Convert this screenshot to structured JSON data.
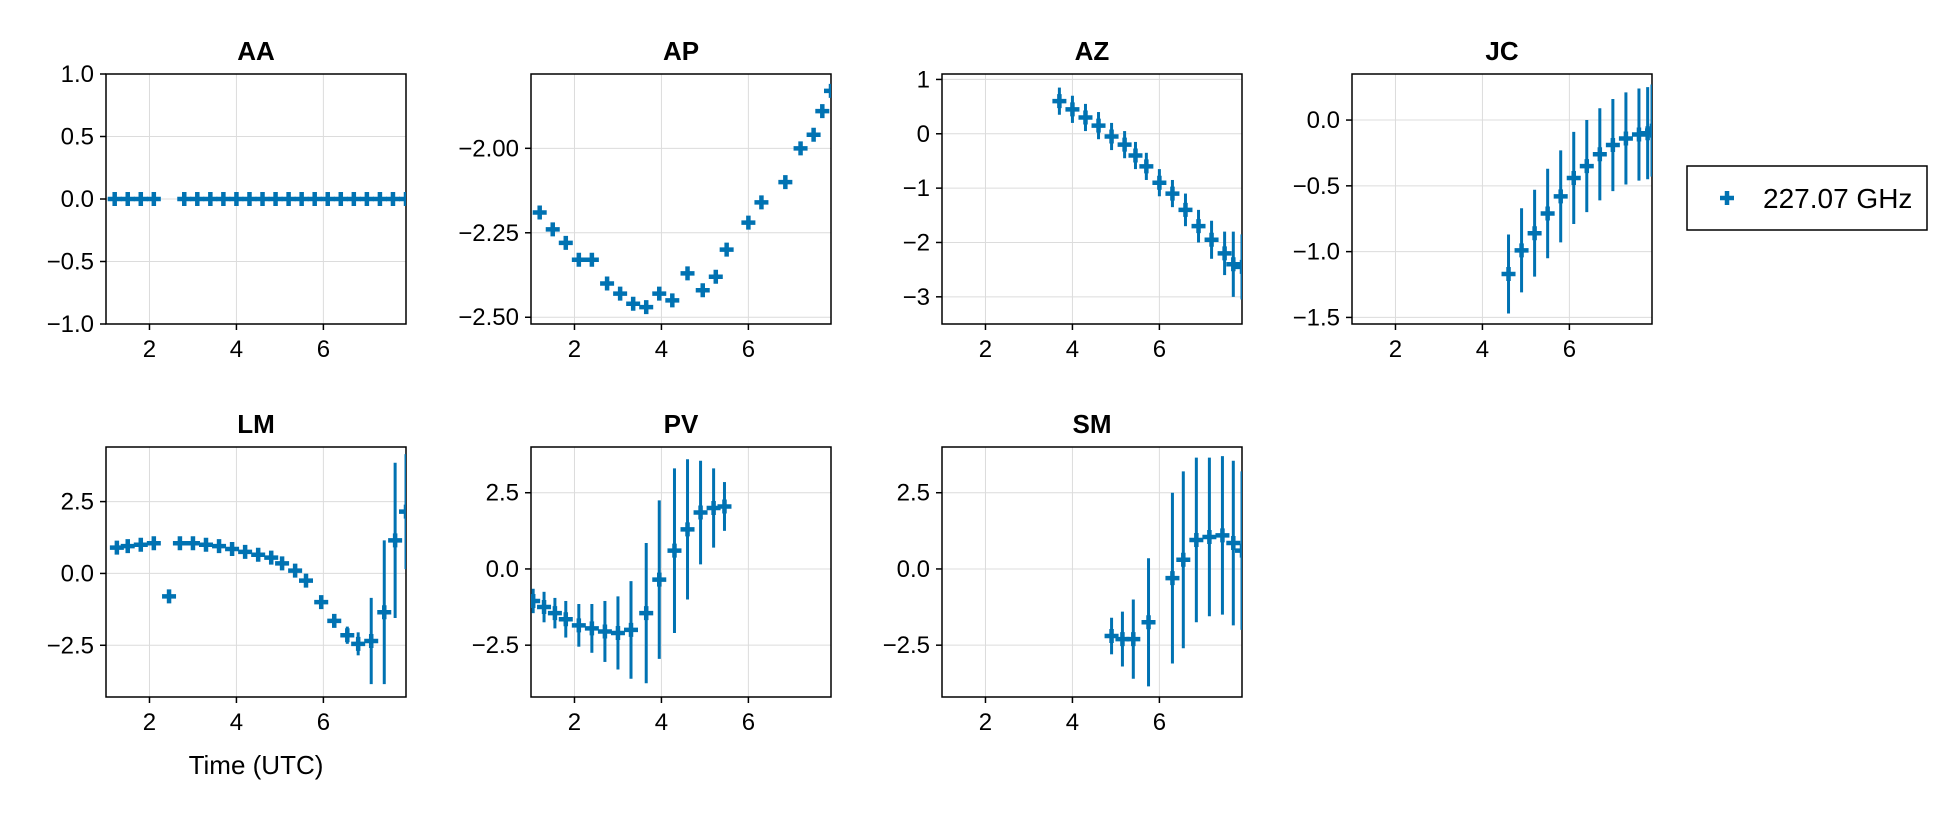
{
  "figure": {
    "xlabel": "Time (UTC)",
    "legend": {
      "label": "227.07 GHz",
      "placement": "right",
      "marker": "plus"
    },
    "series_color": "#0072b2",
    "grid": true
  },
  "chart_data": [
    {
      "type": "scatter",
      "title": "AA",
      "error_bars": true,
      "xlim": [
        1.0,
        7.9
      ],
      "ylim": [
        -1.0,
        1.0
      ],
      "xticks": [
        2,
        4,
        6
      ],
      "yticks": [
        -1.0,
        -0.5,
        0.0,
        0.5,
        1.0
      ],
      "ytick_labels": [
        "−1.0",
        "−0.5",
        "0.0",
        "0.5",
        "1.0"
      ],
      "points": [
        [
          1.2,
          0,
          0
        ],
        [
          1.5,
          0,
          0
        ],
        [
          1.8,
          0,
          0
        ],
        [
          2.1,
          0,
          0
        ],
        [
          2.8,
          0,
          0
        ],
        [
          3.1,
          0,
          0
        ],
        [
          3.4,
          0,
          0
        ],
        [
          3.7,
          0,
          0
        ],
        [
          4.0,
          0,
          0
        ],
        [
          4.3,
          0,
          0
        ],
        [
          4.6,
          0,
          0
        ],
        [
          4.9,
          0,
          0
        ],
        [
          5.2,
          0,
          0
        ],
        [
          5.5,
          0,
          0
        ],
        [
          5.8,
          0,
          0
        ],
        [
          6.1,
          0,
          0
        ],
        [
          6.4,
          0,
          0
        ],
        [
          6.7,
          0,
          0
        ],
        [
          7.0,
          0,
          0
        ],
        [
          7.3,
          0,
          0
        ],
        [
          7.6,
          0,
          0
        ],
        [
          7.9,
          0,
          0
        ]
      ]
    },
    {
      "type": "scatter",
      "title": "AP",
      "error_bars": true,
      "xlim": [
        1.0,
        7.9
      ],
      "ylim": [
        -2.52,
        -1.78
      ],
      "xticks": [
        2,
        4,
        6
      ],
      "yticks": [
        -2.5,
        -2.25,
        -2.0
      ],
      "ytick_labels": [
        "−2.50",
        "−2.25",
        "−2.00"
      ],
      "points": [
        [
          1.2,
          -2.19,
          0
        ],
        [
          1.5,
          -2.24,
          0
        ],
        [
          1.8,
          -2.28,
          0
        ],
        [
          2.1,
          -2.33,
          0
        ],
        [
          2.4,
          -2.33,
          0
        ],
        [
          2.75,
          -2.4,
          0
        ],
        [
          3.05,
          -2.43,
          0
        ],
        [
          3.35,
          -2.46,
          0
        ],
        [
          3.65,
          -2.47,
          0
        ],
        [
          3.95,
          -2.43,
          0
        ],
        [
          4.25,
          -2.45,
          0
        ],
        [
          4.6,
          -2.37,
          0
        ],
        [
          4.95,
          -2.42,
          0
        ],
        [
          5.25,
          -2.38,
          0
        ],
        [
          5.5,
          -2.3,
          0
        ],
        [
          6.0,
          -2.22,
          0
        ],
        [
          6.3,
          -2.16,
          0
        ],
        [
          6.85,
          -2.1,
          0
        ],
        [
          7.2,
          -2.0,
          0
        ],
        [
          7.5,
          -1.96,
          0
        ],
        [
          7.7,
          -1.89,
          0
        ],
        [
          7.9,
          -1.83,
          0
        ]
      ]
    },
    {
      "type": "scatter",
      "title": "AZ",
      "error_bars": true,
      "xlim": [
        1.0,
        7.9
      ],
      "ylim": [
        -3.5,
        1.1
      ],
      "xticks": [
        2,
        4,
        6
      ],
      "yticks": [
        -3,
        -2,
        -1,
        0,
        1
      ],
      "ytick_labels": [
        "−3",
        "−2",
        "−1",
        "0",
        "1"
      ],
      "points": [
        [
          3.7,
          0.6,
          0.25
        ],
        [
          4.0,
          0.45,
          0.25
        ],
        [
          4.3,
          0.3,
          0.25
        ],
        [
          4.6,
          0.15,
          0.25
        ],
        [
          4.9,
          -0.05,
          0.25
        ],
        [
          5.2,
          -0.2,
          0.25
        ],
        [
          5.45,
          -0.4,
          0.25
        ],
        [
          5.7,
          -0.6,
          0.25
        ],
        [
          6.0,
          -0.9,
          0.25
        ],
        [
          6.3,
          -1.1,
          0.25
        ],
        [
          6.6,
          -1.4,
          0.3
        ],
        [
          6.9,
          -1.7,
          0.3
        ],
        [
          7.2,
          -1.95,
          0.35
        ],
        [
          7.5,
          -2.2,
          0.4
        ],
        [
          7.7,
          -2.4,
          0.6
        ],
        [
          7.9,
          -2.45,
          0.6
        ]
      ]
    },
    {
      "type": "scatter",
      "title": "JC",
      "error_bars": true,
      "xlim": [
        1.0,
        7.9
      ],
      "ylim": [
        -1.55,
        0.35
      ],
      "xticks": [
        2,
        4,
        6
      ],
      "yticks": [
        -1.5,
        -1.0,
        -0.5,
        0.0
      ],
      "ytick_labels": [
        "−1.5",
        "−1.0",
        "−0.5",
        "0.0"
      ],
      "points": [
        [
          4.6,
          -1.17,
          0.3
        ],
        [
          4.9,
          -0.99,
          0.32
        ],
        [
          5.2,
          -0.86,
          0.33
        ],
        [
          5.5,
          -0.71,
          0.34
        ],
        [
          5.8,
          -0.58,
          0.35
        ],
        [
          6.1,
          -0.44,
          0.35
        ],
        [
          6.4,
          -0.35,
          0.35
        ],
        [
          6.7,
          -0.26,
          0.35
        ],
        [
          7.0,
          -0.19,
          0.35
        ],
        [
          7.3,
          -0.14,
          0.35
        ],
        [
          7.6,
          -0.11,
          0.35
        ],
        [
          7.8,
          -0.1,
          0.35
        ],
        [
          7.9,
          -0.08,
          0.35
        ]
      ]
    },
    {
      "type": "scatter",
      "title": "LM",
      "error_bars": true,
      "xlim": [
        1.0,
        7.9
      ],
      "ylim": [
        -4.3,
        4.4
      ],
      "xticks": [
        2,
        4,
        6
      ],
      "yticks": [
        -2.5,
        0.0,
        2.5
      ],
      "ytick_labels": [
        "−2.5",
        "0.0",
        "2.5"
      ],
      "xlabel": "Time (UTC)",
      "points": [
        [
          1.25,
          0.9,
          0
        ],
        [
          1.5,
          0.95,
          0
        ],
        [
          1.8,
          1.0,
          0
        ],
        [
          2.1,
          1.05,
          0
        ],
        [
          2.45,
          -0.8,
          0
        ],
        [
          2.7,
          1.05,
          0
        ],
        [
          3.0,
          1.05,
          0
        ],
        [
          3.3,
          1.0,
          0
        ],
        [
          3.6,
          0.95,
          0
        ],
        [
          3.9,
          0.85,
          0
        ],
        [
          4.2,
          0.75,
          0
        ],
        [
          4.5,
          0.65,
          0
        ],
        [
          4.8,
          0.55,
          0
        ],
        [
          5.05,
          0.35,
          0
        ],
        [
          5.35,
          0.1,
          0
        ],
        [
          5.6,
          -0.25,
          0
        ],
        [
          5.95,
          -1.0,
          0
        ],
        [
          6.25,
          -1.65,
          0
        ],
        [
          6.55,
          -2.15,
          0.3
        ],
        [
          6.8,
          -2.45,
          0.4
        ],
        [
          7.1,
          -2.35,
          1.5
        ],
        [
          7.4,
          -1.35,
          2.5
        ],
        [
          7.65,
          1.15,
          2.7
        ],
        [
          7.9,
          2.15,
          2.0
        ]
      ]
    },
    {
      "type": "scatter",
      "title": "PV",
      "error_bars": true,
      "xlim": [
        1.0,
        7.9
      ],
      "ylim": [
        -4.2,
        4.0
      ],
      "xticks": [
        2,
        4,
        6
      ],
      "yticks": [
        -2.5,
        0.0,
        2.5
      ],
      "ytick_labels": [
        "−2.5",
        "0.0",
        "2.5"
      ],
      "points": [
        [
          1.05,
          -1.05,
          0.4
        ],
        [
          1.3,
          -1.25,
          0.5
        ],
        [
          1.55,
          -1.45,
          0.5
        ],
        [
          1.8,
          -1.65,
          0.6
        ],
        [
          2.1,
          -1.85,
          0.7
        ],
        [
          2.4,
          -1.95,
          0.8
        ],
        [
          2.7,
          -2.05,
          1.0
        ],
        [
          3.0,
          -2.1,
          1.2
        ],
        [
          3.3,
          -2.0,
          1.6
        ],
        [
          3.65,
          -1.45,
          2.3
        ],
        [
          3.95,
          -0.35,
          2.6
        ],
        [
          4.3,
          0.6,
          2.7
        ],
        [
          4.6,
          1.3,
          2.3
        ],
        [
          4.9,
          1.85,
          1.7
        ],
        [
          5.2,
          2.0,
          1.3
        ],
        [
          5.45,
          2.05,
          0.8
        ]
      ]
    },
    {
      "type": "scatter",
      "title": "SM",
      "error_bars": true,
      "xlim": [
        1.0,
        7.9
      ],
      "ylim": [
        -4.2,
        4.0
      ],
      "xticks": [
        2,
        4,
        6
      ],
      "yticks": [
        -2.5,
        0.0,
        2.5
      ],
      "ytick_labels": [
        "−2.5",
        "0.0",
        "2.5"
      ],
      "points": [
        [
          4.9,
          -2.2,
          0.6
        ],
        [
          5.15,
          -2.3,
          0.9
        ],
        [
          5.4,
          -2.3,
          1.3
        ],
        [
          5.75,
          -1.75,
          2.1
        ],
        [
          6.3,
          -0.3,
          2.8
        ],
        [
          6.55,
          0.3,
          2.9
        ],
        [
          6.85,
          0.95,
          2.7
        ],
        [
          7.15,
          1.05,
          2.6
        ],
        [
          7.45,
          1.1,
          2.6
        ],
        [
          7.7,
          0.85,
          2.7
        ],
        [
          7.9,
          0.6,
          2.6
        ]
      ]
    }
  ]
}
